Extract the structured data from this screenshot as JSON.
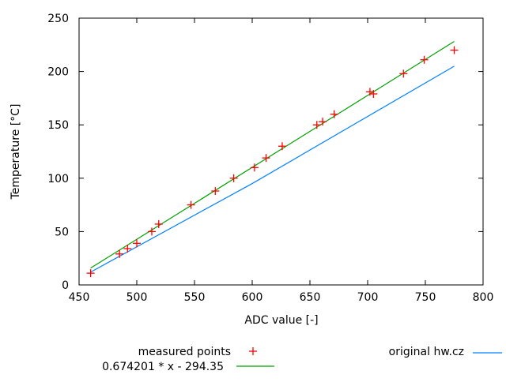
{
  "chart_data": {
    "type": "scatter",
    "title": "",
    "xlabel": "ADC value [-]",
    "ylabel": "Temperature [°C]",
    "xlim": [
      450,
      800
    ],
    "ylim": [
      0,
      250
    ],
    "xticks": [
      450,
      500,
      550,
      600,
      650,
      700,
      750,
      800
    ],
    "yticks": [
      0,
      50,
      100,
      150,
      200,
      250
    ],
    "grid": false,
    "legend_position": "below-plot",
    "axis_color": "#000000",
    "background": "#ffffff",
    "series": [
      {
        "name": "measured points",
        "type": "scatter",
        "marker": "plus",
        "color": "#ff0000",
        "points": [
          [
            460,
            11
          ],
          [
            485,
            29
          ],
          [
            492,
            34
          ],
          [
            500,
            39
          ],
          [
            513,
            50
          ],
          [
            519,
            57
          ],
          [
            547,
            75
          ],
          [
            568,
            88
          ],
          [
            584,
            100
          ],
          [
            602,
            110
          ],
          [
            612,
            119
          ],
          [
            626,
            130
          ],
          [
            656,
            150
          ],
          [
            661,
            153
          ],
          [
            671,
            160
          ],
          [
            702,
            181
          ],
          [
            705,
            179
          ],
          [
            731,
            198
          ],
          [
            749,
            211
          ],
          [
            775,
            220
          ]
        ]
      },
      {
        "name": "0.674201 * x - 294.35",
        "type": "line",
        "color": "#00a000",
        "slope": 0.674201,
        "intercept": -294.35,
        "x_range": [
          460,
          775
        ]
      },
      {
        "name": "original hw.cz",
        "type": "line",
        "color": "#0080ff",
        "points": [
          [
            460,
            12
          ],
          [
            600,
            95
          ],
          [
            775,
            205
          ]
        ]
      }
    ]
  }
}
